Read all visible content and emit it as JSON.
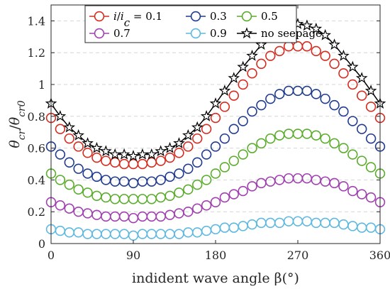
{
  "chart_data": {
    "type": "scatter",
    "xlabel": "indident wave angle β(°)",
    "ylabel": "θcr/θcr0",
    "xlim": [
      0,
      360
    ],
    "ylim": [
      0,
      1.5
    ],
    "xticks": [
      0,
      90,
      180,
      270,
      360
    ],
    "xtick_labels": [
      "0",
      "90",
      "180",
      "270",
      "360"
    ],
    "yticks": [
      0,
      0.2,
      0.4,
      0.6,
      0.8,
      1.0,
      1.2,
      1.4
    ],
    "ytick_labels": [
      "0",
      "0.2",
      "0.4",
      "0.6",
      "0.8",
      "1",
      "1.2",
      "1.4"
    ],
    "grid": "horizontal dashed",
    "legend_position": "top-center",
    "x": [
      0,
      10,
      20,
      30,
      40,
      50,
      60,
      70,
      80,
      90,
      100,
      110,
      120,
      130,
      140,
      150,
      160,
      170,
      180,
      190,
      200,
      210,
      220,
      230,
      240,
      250,
      260,
      270,
      280,
      290,
      300,
      310,
      320,
      330,
      340,
      350,
      360
    ],
    "series": [
      {
        "name": "i/ic = 0.1",
        "color": "#d62b1e",
        "marker": "circle",
        "values": [
          0.79,
          0.72,
          0.66,
          0.61,
          0.57,
          0.54,
          0.52,
          0.51,
          0.5,
          0.5,
          0.5,
          0.51,
          0.52,
          0.54,
          0.57,
          0.61,
          0.66,
          0.72,
          0.79,
          0.86,
          0.93,
          1.0,
          1.07,
          1.13,
          1.18,
          1.21,
          1.24,
          1.24,
          1.24,
          1.21,
          1.18,
          1.13,
          1.07,
          1.0,
          0.93,
          0.86,
          0.79
        ]
      },
      {
        "name": "0.3",
        "color": "#1f3b8f",
        "marker": "circle",
        "values": [
          0.61,
          0.56,
          0.51,
          0.47,
          0.44,
          0.42,
          0.4,
          0.39,
          0.39,
          0.38,
          0.39,
          0.39,
          0.4,
          0.42,
          0.44,
          0.47,
          0.51,
          0.56,
          0.61,
          0.66,
          0.72,
          0.77,
          0.83,
          0.87,
          0.91,
          0.94,
          0.96,
          0.96,
          0.96,
          0.94,
          0.91,
          0.87,
          0.83,
          0.77,
          0.72,
          0.66,
          0.61
        ]
      },
      {
        "name": "0.5",
        "color": "#5aac2b",
        "marker": "circle",
        "values": [
          0.44,
          0.4,
          0.37,
          0.34,
          0.32,
          0.3,
          0.29,
          0.28,
          0.28,
          0.28,
          0.28,
          0.28,
          0.29,
          0.3,
          0.32,
          0.34,
          0.37,
          0.4,
          0.44,
          0.48,
          0.52,
          0.56,
          0.6,
          0.63,
          0.66,
          0.68,
          0.69,
          0.69,
          0.69,
          0.68,
          0.66,
          0.63,
          0.6,
          0.56,
          0.52,
          0.48,
          0.44
        ]
      },
      {
        "name": "0.7",
        "color": "#a040b0",
        "marker": "circle",
        "values": [
          0.26,
          0.24,
          0.22,
          0.2,
          0.19,
          0.18,
          0.17,
          0.17,
          0.17,
          0.16,
          0.17,
          0.17,
          0.17,
          0.18,
          0.19,
          0.2,
          0.22,
          0.24,
          0.26,
          0.29,
          0.31,
          0.33,
          0.36,
          0.38,
          0.39,
          0.4,
          0.41,
          0.41,
          0.41,
          0.4,
          0.39,
          0.38,
          0.36,
          0.33,
          0.31,
          0.29,
          0.26
        ]
      },
      {
        "name": "0.9",
        "color": "#5fb8e0",
        "marker": "circle",
        "values": [
          0.09,
          0.08,
          0.07,
          0.07,
          0.06,
          0.06,
          0.06,
          0.06,
          0.06,
          0.05,
          0.06,
          0.06,
          0.06,
          0.06,
          0.06,
          0.07,
          0.07,
          0.08,
          0.09,
          0.1,
          0.1,
          0.11,
          0.12,
          0.13,
          0.13,
          0.13,
          0.14,
          0.14,
          0.14,
          0.13,
          0.13,
          0.13,
          0.12,
          0.11,
          0.1,
          0.1,
          0.09
        ]
      },
      {
        "name": "no seepage",
        "color": "#000000",
        "marker": "star",
        "line": true,
        "values": [
          0.88,
          0.8,
          0.73,
          0.68,
          0.63,
          0.6,
          0.58,
          0.56,
          0.56,
          0.55,
          0.56,
          0.56,
          0.58,
          0.6,
          0.63,
          0.68,
          0.73,
          0.8,
          0.88,
          0.96,
          1.04,
          1.11,
          1.18,
          1.25,
          1.31,
          1.35,
          1.37,
          1.38,
          1.37,
          1.35,
          1.31,
          1.25,
          1.18,
          1.11,
          1.04,
          0.96,
          0.88
        ]
      }
    ]
  }
}
